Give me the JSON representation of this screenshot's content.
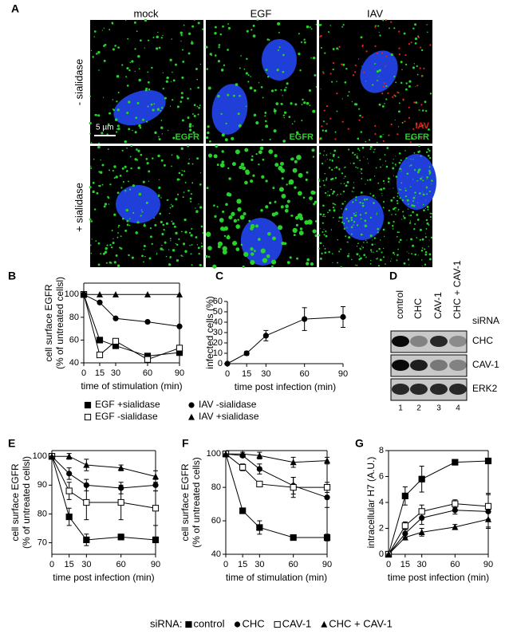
{
  "panel_a": {
    "letter": "A",
    "columns": [
      "mock",
      "EGF",
      "IAV"
    ],
    "rows": [
      "- sialidase",
      "+ sialidase"
    ],
    "scale_bar": "5 µm",
    "stains": [
      "EGFR",
      "IAV"
    ]
  },
  "panel_d": {
    "letter": "D",
    "lanes": [
      "control",
      "CHC",
      "CAV-1",
      "CHC + CAV-1"
    ],
    "lane_title": "siRNA",
    "bands": [
      "CHC",
      "CAV-1",
      "ERK2"
    ],
    "lane_numbers": [
      1,
      2,
      3,
      4
    ]
  },
  "shared_legend": {
    "title": "siRNA:",
    "entries": [
      {
        "name": "control",
        "marker": "square"
      },
      {
        "name": "CHC",
        "marker": "circle"
      },
      {
        "name": "CAV-1",
        "marker": "square-open"
      },
      {
        "name": "CHC + CAV-1",
        "marker": "triangle"
      }
    ]
  },
  "chart_data": [
    {
      "type": "line",
      "panel": "B",
      "frame": "box",
      "color": "#000000",
      "xlabel": "time of stimulation (min)",
      "ylabel": [
        "cell surface EGFR",
        "(% of untreated cellsl)"
      ],
      "x": [
        0,
        15,
        30,
        60,
        90
      ],
      "xlim": [
        0,
        90
      ],
      "xticks": [
        0,
        15,
        30,
        60,
        90
      ],
      "ylim": [
        40,
        110
      ],
      "yticks": [
        40,
        60,
        80,
        100
      ],
      "series": [
        {
          "name": "EGF +sialidase",
          "marker": "square",
          "values": [
            100,
            60,
            55,
            46,
            49
          ]
        },
        {
          "name": "EGF -sialidase",
          "marker": "square-open",
          "values": [
            100,
            47,
            59,
            43,
            53
          ]
        },
        {
          "name": "IAV -sialidase",
          "marker": "circle",
          "values": [
            100,
            93,
            79,
            76,
            72
          ]
        },
        {
          "name": "IAV +sialidase",
          "marker": "triangle",
          "values": [
            100,
            100,
            100,
            100,
            100
          ]
        }
      ]
    },
    {
      "type": "line",
      "panel": "C",
      "frame": "axes",
      "color": "#000000",
      "xlabel": "time post infection (min)",
      "ylabel": [
        "infected cells (%)"
      ],
      "x": [
        0,
        15,
        30,
        60,
        90
      ],
      "xlim": [
        0,
        90
      ],
      "xticks": [
        0,
        15,
        30,
        60,
        90
      ],
      "ylim": [
        0,
        60
      ],
      "yticks": [
        0,
        10,
        20,
        30,
        40,
        50,
        60
      ],
      "series": [
        {
          "marker": "circle",
          "values": [
            0,
            10,
            27,
            43,
            45
          ],
          "errors": [
            0,
            2,
            5,
            11,
            10
          ]
        }
      ]
    },
    {
      "type": "line",
      "panel": "E",
      "frame": "box",
      "color": "#000000",
      "xlabel": "time post infection (min)",
      "ylabel": [
        "cell surface EGFR",
        "(% of untreated cellsl)"
      ],
      "x": [
        0,
        15,
        30,
        60,
        90
      ],
      "xlim": [
        0,
        90
      ],
      "xticks": [
        0,
        15,
        30,
        60,
        90
      ],
      "ylim": [
        66,
        102
      ],
      "yticks": [
        70,
        80,
        90,
        100
      ],
      "series": [
        {
          "marker": "square",
          "values": [
            100,
            79,
            71,
            72,
            71
          ],
          "errors": [
            0,
            3,
            2,
            1,
            1
          ]
        },
        {
          "marker": "circle",
          "values": [
            100,
            94,
            90,
            89,
            90
          ],
          "errors": [
            0,
            2,
            2,
            2,
            2
          ]
        },
        {
          "marker": "square-open",
          "values": [
            100,
            88,
            84,
            84,
            82
          ],
          "errors": [
            0,
            3,
            6,
            6,
            6
          ]
        },
        {
          "marker": "triangle",
          "values": [
            100,
            100,
            97,
            96,
            93
          ],
          "errors": [
            0,
            1,
            2,
            1,
            2
          ]
        }
      ]
    },
    {
      "type": "line",
      "panel": "F",
      "frame": "box",
      "color": "#000000",
      "xlabel": "time of stimulation (min)",
      "ylabel": [
        "cell surface EGFR",
        "(% of untreated cells)"
      ],
      "x": [
        0,
        15,
        30,
        60,
        90
      ],
      "xlim": [
        0,
        90
      ],
      "xticks": [
        0,
        15,
        30,
        60,
        90
      ],
      "ylim": [
        40,
        102
      ],
      "yticks": [
        40,
        60,
        80,
        100
      ],
      "series": [
        {
          "marker": "square",
          "values": [
            100,
            66,
            56,
            50,
            50
          ],
          "errors": [
            0,
            1,
            4,
            1,
            2
          ]
        },
        {
          "marker": "circle",
          "values": [
            100,
            99,
            91,
            81,
            74
          ],
          "errors": [
            0,
            1,
            3,
            5,
            6
          ]
        },
        {
          "marker": "square-open",
          "values": [
            100,
            92,
            82,
            80,
            80
          ],
          "errors": [
            0,
            2,
            1,
            6,
            3
          ]
        },
        {
          "marker": "triangle",
          "values": [
            100,
            100,
            99,
            95,
            96
          ],
          "errors": [
            0,
            1,
            2,
            3,
            2
          ]
        }
      ]
    },
    {
      "type": "line",
      "panel": "G",
      "frame": "box",
      "color": "#000000",
      "xlabel": "time post infection (min)",
      "ylabel": [
        "intracellular H7 (A.U.)"
      ],
      "x": [
        0,
        15,
        30,
        60,
        90
      ],
      "xlim": [
        0,
        90
      ],
      "xticks": [
        0,
        15,
        30,
        60,
        90
      ],
      "ylim": [
        0,
        8
      ],
      "yticks": [
        0,
        2,
        4,
        6,
        8
      ],
      "series": [
        {
          "marker": "square",
          "values": [
            0,
            4.5,
            5.8,
            7.1,
            7.2
          ],
          "errors": [
            0,
            0.7,
            1,
            0.2,
            0.2
          ]
        },
        {
          "marker": "circle",
          "values": [
            0,
            1.6,
            2.8,
            3.4,
            3.3
          ],
          "errors": [
            0,
            0.3,
            0.5,
            0.3,
            1.3
          ]
        },
        {
          "marker": "square-open",
          "values": [
            0,
            2.2,
            3.3,
            3.9,
            3.7
          ],
          "errors": [
            0,
            0.3,
            0.5,
            0.3,
            1
          ]
        },
        {
          "marker": "triangle",
          "values": [
            0,
            1.3,
            1.7,
            2.1,
            2.7
          ],
          "errors": [
            0,
            0.2,
            0.3,
            0.2,
            0.6
          ]
        }
      ]
    }
  ]
}
